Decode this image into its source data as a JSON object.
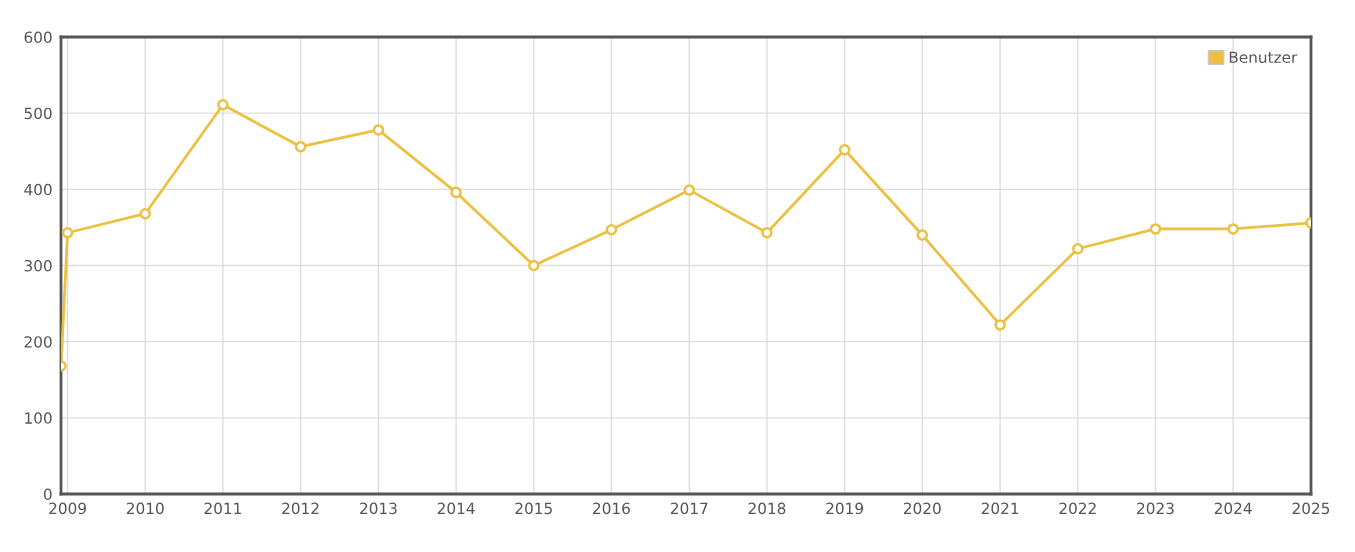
{
  "chart_data": {
    "type": "line",
    "x": [
      "2008-12-01",
      "2009",
      "2010",
      "2011",
      "2012",
      "2013",
      "2014",
      "2015",
      "2016",
      "2017",
      "2018",
      "2019",
      "2020",
      "2021",
      "2022",
      "2023",
      "2024",
      "2025"
    ],
    "series": [
      {
        "name": "Benutzer",
        "color": "#ecc043",
        "values": [
          168,
          343,
          368,
          511,
          456,
          478,
          396,
          300,
          347,
          399,
          343,
          452,
          340,
          222,
          322,
          348,
          348,
          356
        ]
      }
    ],
    "xlim": [
      "2008-12-01",
      "2025"
    ],
    "xticks": [
      "2009",
      "2010",
      "2011",
      "2012",
      "2013",
      "2014",
      "2015",
      "2016",
      "2017",
      "2018",
      "2019",
      "2020",
      "2021",
      "2022",
      "2023",
      "2024",
      "2025"
    ],
    "ylim": [
      0,
      600
    ],
    "yticks": [
      0,
      100,
      200,
      300,
      400,
      500,
      600
    ],
    "grid": true,
    "legend": "top right",
    "marker": "circle",
    "line_style": "solid"
  }
}
